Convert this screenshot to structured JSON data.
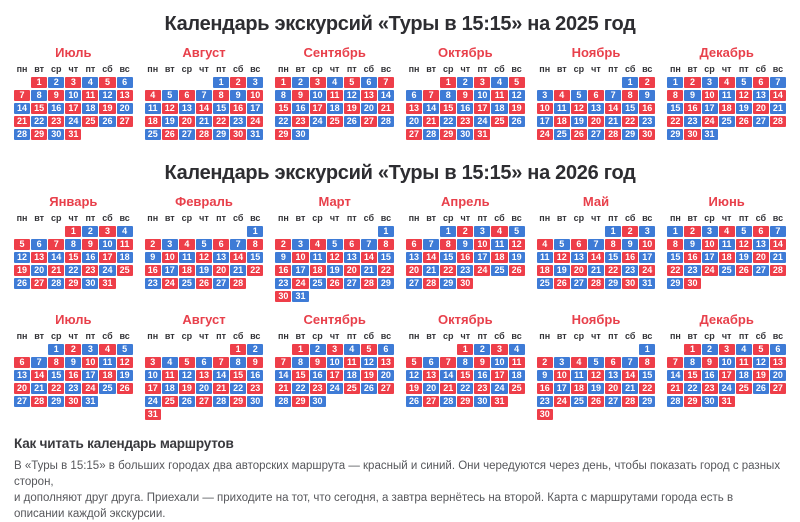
{
  "colors": {
    "red": "#ee3e49",
    "blue": "#3e7bd6",
    "month_title": "#e8404b",
    "section_title": "#2d2d31"
  },
  "weekdays": [
    "пн",
    "вт",
    "ср",
    "чт",
    "пт",
    "сб",
    "вс"
  ],
  "sections": [
    {
      "title": "Календарь экскурсий «Туры в 15:15» на 2025 год",
      "rows": [
        [
          {
            "name": "Июль",
            "offset": 1,
            "days": 31,
            "first": "r"
          },
          {
            "name": "Август",
            "offset": 4,
            "days": 31,
            "first": "b"
          },
          {
            "name": "Сентябрь",
            "offset": 0,
            "days": 30,
            "first": "r"
          },
          {
            "name": "Октябрь",
            "offset": 2,
            "days": 31,
            "first": "r"
          },
          {
            "name": "Ноябрь",
            "offset": 5,
            "days": 30,
            "first": "b"
          },
          {
            "name": "Декабрь",
            "offset": 0,
            "days": 31,
            "first": "b"
          }
        ]
      ]
    },
    {
      "title": "Календарь экскурсий «Туры в 15:15» на 2026 год",
      "rows": [
        [
          {
            "name": "Январь",
            "offset": 3,
            "days": 31,
            "first": "r"
          },
          {
            "name": "Февраль",
            "offset": 6,
            "days": 28,
            "first": "b"
          },
          {
            "name": "Март",
            "offset": 6,
            "days": 31,
            "first": "b"
          },
          {
            "name": "Апрель",
            "offset": 2,
            "days": 30,
            "first": "b"
          },
          {
            "name": "Май",
            "offset": 4,
            "days": 31,
            "first": "b"
          },
          {
            "name": "Июнь",
            "offset": 0,
            "days": 30,
            "first": "b"
          }
        ],
        [
          {
            "name": "Июль",
            "offset": 2,
            "days": 31,
            "first": "b"
          },
          {
            "name": "Август",
            "offset": 5,
            "days": 31,
            "first": "r"
          },
          {
            "name": "Сентябрь",
            "offset": 1,
            "days": 30,
            "first": "r"
          },
          {
            "name": "Октябрь",
            "offset": 3,
            "days": 31,
            "first": "r"
          },
          {
            "name": "Ноябрь",
            "offset": 6,
            "days": 30,
            "first": "b"
          },
          {
            "name": "Декабрь",
            "offset": 1,
            "days": 31,
            "first": "r"
          }
        ]
      ]
    }
  ],
  "footer": {
    "heading": "Как читать календарь маршрутов",
    "lines": [
      "В «Туры в 15:15» в больших городах два авторских маршрута — красный и синий. Они чередуются через день, чтобы показать город с разных сторон,",
      "и дополняют друг друга. Приехали — приходите на тот, что сегодня, а завтра вернётесь на второй. Карта с маршрутами города есть в описании каждой экскурсии."
    ]
  }
}
